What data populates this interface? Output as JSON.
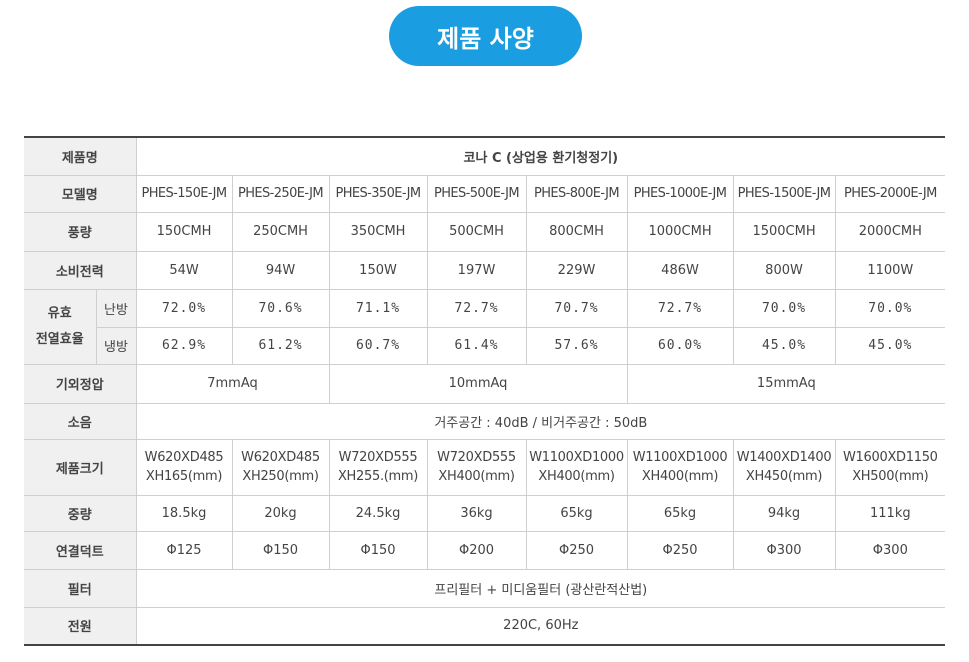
{
  "title": "제품 사양",
  "headers": {
    "product_name": "제품명",
    "model": "모델명",
    "airflow": "풍량",
    "power": "소비전력",
    "efficiency_group": "유효\n전열효율",
    "heating": "난방",
    "cooling": "냉방",
    "static_pressure": "기외정압",
    "noise": "소음",
    "size": "제품크기",
    "weight": "중량",
    "duct": "연결덕트",
    "filter": "필터",
    "power_supply": "전원"
  },
  "product_name": "코나 C (상업용 환기청정기)",
  "models": [
    "PHES-150E-JM",
    "PHES-250E-JM",
    "PHES-350E-JM",
    "PHES-500E-JM",
    "PHES-800E-JM",
    "PHES-1000E-JM",
    "PHES-1500E-JM",
    "PHES-2000E-JM"
  ],
  "airflow": [
    "150CMH",
    "250CMH",
    "350CMH",
    "500CMH",
    "800CMH",
    "1000CMH",
    "1500CMH",
    "2000CMH"
  ],
  "power": [
    "54W",
    "94W",
    "150W",
    "197W",
    "229W",
    "486W",
    "800W",
    "1100W"
  ],
  "heating_eff": [
    "72.0%",
    "70.6%",
    "71.1%",
    "72.7%",
    "70.7%",
    "72.7%",
    "70.0%",
    "70.0%"
  ],
  "cooling_eff": [
    "62.9%",
    "61.2%",
    "60.7%",
    "61.4%",
    "57.6%",
    "60.0%",
    "45.0%",
    "45.0%"
  ],
  "static_pressure": [
    "7mmAq",
    "10mmAq",
    "15mmAq"
  ],
  "noise": "거주공간 : 40dB / 비거주공간 : 50dB",
  "size": [
    {
      "l1": "W620XD485",
      "l2": "XH165(mm)"
    },
    {
      "l1": "W620XD485",
      "l2": "XH250(mm)"
    },
    {
      "l1": "W720XD555",
      "l2": "XH255.(mm)"
    },
    {
      "l1": "W720XD555",
      "l2": "XH400(mm)"
    },
    {
      "l1": "W1100XD1000",
      "l2": "XH400(mm)"
    },
    {
      "l1": "W1100XD1000",
      "l2": "XH400(mm)"
    },
    {
      "l1": "W1400XD1400",
      "l2": "XH450(mm)"
    },
    {
      "l1": "W1600XD1150",
      "l2": "XH500(mm)"
    }
  ],
  "weight": [
    "18.5kg",
    "20kg",
    "24.5kg",
    "36kg",
    "65kg",
    "65kg",
    "94kg",
    "111kg"
  ],
  "duct": [
    "Φ125",
    "Φ150",
    "Φ150",
    "Φ200",
    "Φ250",
    "Φ250",
    "Φ300",
    "Φ300"
  ],
  "filter": "프리필터 + 미디움필터 (광산란적산법)",
  "power_supply": "220C, 60Hz",
  "colors": {
    "accent": "#1a9de1",
    "header_bg": "#f0f0f0",
    "border": "#cfcfcf"
  }
}
